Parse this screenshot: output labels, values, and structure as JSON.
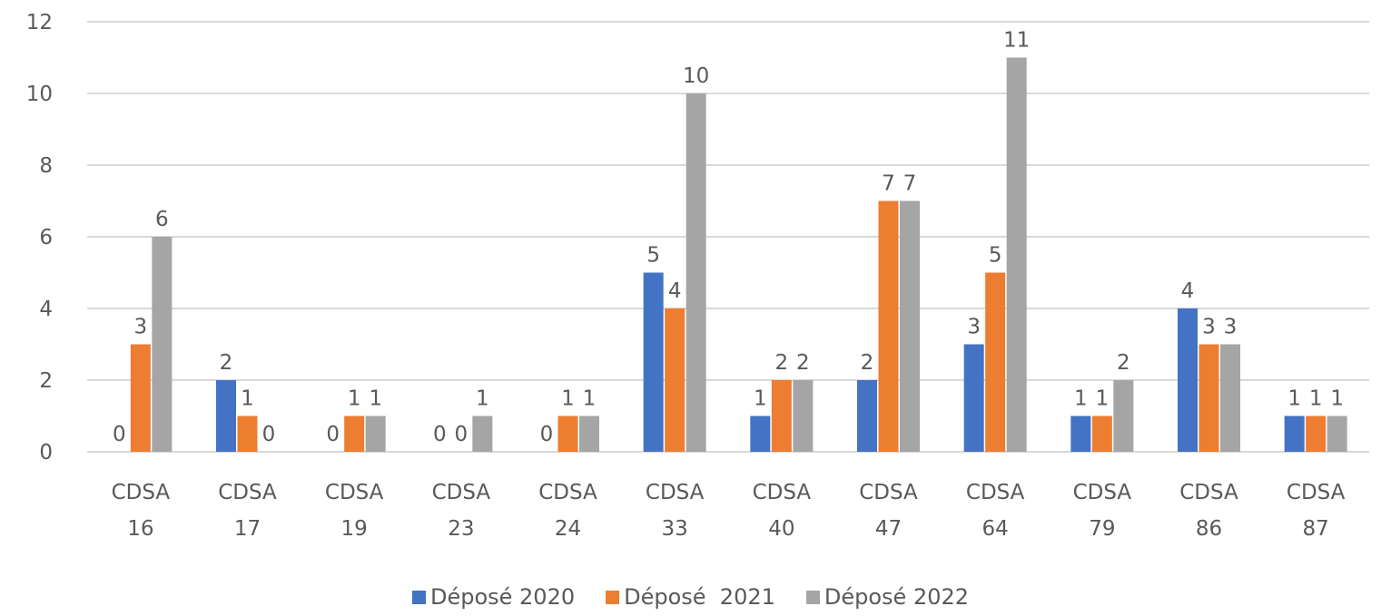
{
  "chart_data": {
    "type": "bar",
    "categories": [
      "CDSA 16",
      "CDSA 17",
      "CDSA 19",
      "CDSA 23",
      "CDSA 24",
      "CDSA 33",
      "CDSA 40",
      "CDSA 47",
      "CDSA 64",
      "CDSA 79",
      "CDSA 86",
      "CDSA 87"
    ],
    "series": [
      {
        "name": "Déposé 2020",
        "color": "#4472c4",
        "values": [
          0,
          2,
          0,
          0,
          0,
          5,
          1,
          2,
          3,
          1,
          4,
          1
        ]
      },
      {
        "name": "Déposé  2021",
        "color": "#ed7d31",
        "values": [
          3,
          1,
          1,
          0,
          1,
          4,
          2,
          7,
          5,
          1,
          3,
          1
        ]
      },
      {
        "name": "Déposé 2022",
        "color": "#a5a5a5",
        "values": [
          6,
          0,
          1,
          1,
          1,
          10,
          2,
          7,
          11,
          2,
          3,
          1
        ]
      }
    ],
    "ylim": [
      0,
      12
    ],
    "yticks": [
      0,
      2,
      4,
      6,
      8,
      10,
      12
    ],
    "grid": true,
    "legend": "bottom"
  }
}
